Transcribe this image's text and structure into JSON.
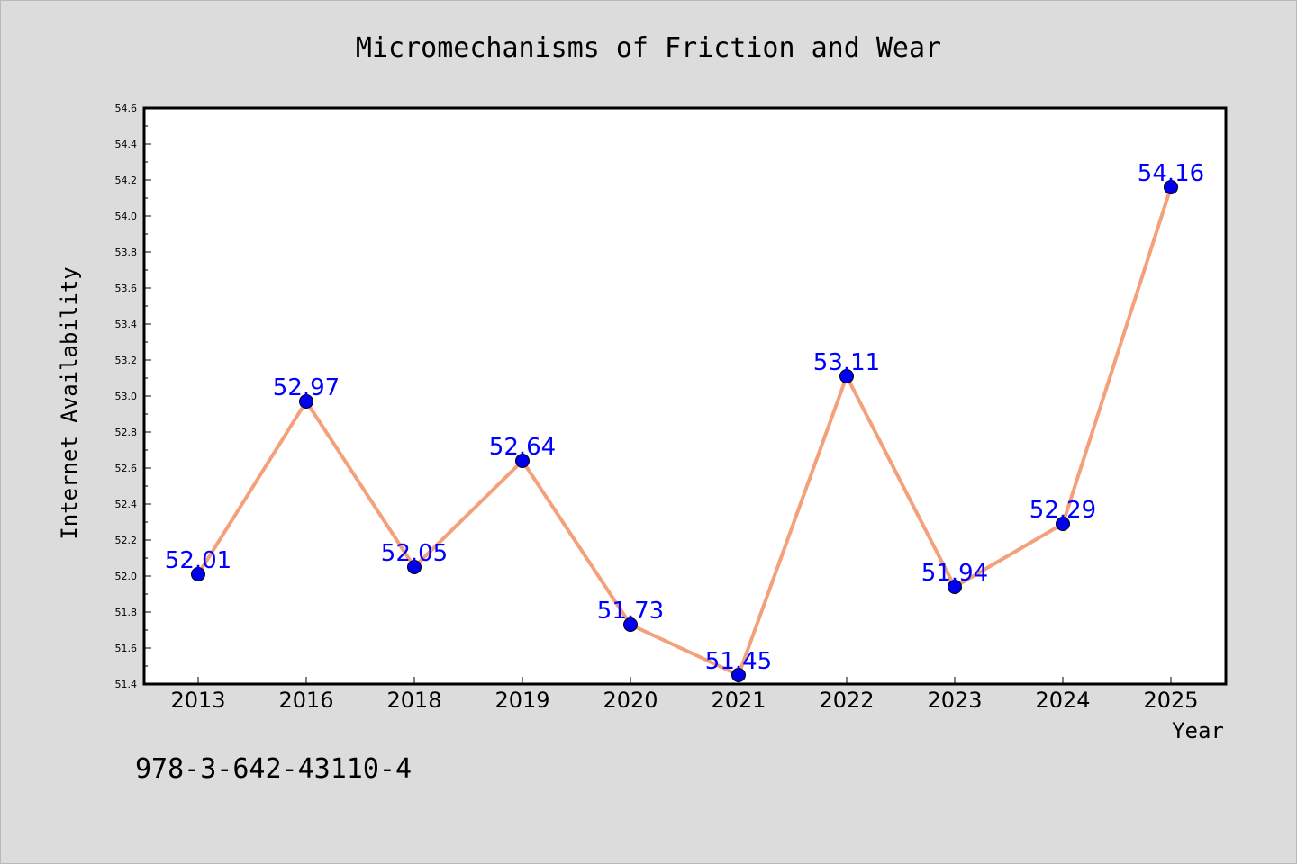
{
  "chart_data": {
    "type": "line",
    "title": "Micromechanisms of Friction and Wear",
    "xlabel": "Year",
    "ylabel": "Internet Availability",
    "categories": [
      "2013",
      "2016",
      "2018",
      "2019",
      "2020",
      "2021",
      "2022",
      "2023",
      "2024",
      "2025"
    ],
    "series": [
      {
        "values": [
          52.01,
          52.97,
          52.05,
          52.64,
          51.73,
          51.45,
          53.11,
          51.94,
          52.29,
          54.16
        ],
        "line_color": "#f4a07a",
        "marker_color": "#0000ee"
      }
    ],
    "data_labels": [
      "52.01",
      "52.97",
      "52.05",
      "52.64",
      "51.73",
      "51.45",
      "53.11",
      "51.94",
      "52.29",
      "54.16"
    ],
    "ylim": [
      51.4,
      54.6
    ],
    "y_ticks": [
      "51.4",
      "51.6",
      "51.8",
      "52.0",
      "52.2",
      "52.4",
      "52.6",
      "52.8",
      "53.0",
      "53.2",
      "53.4",
      "53.6",
      "53.8",
      "54.0",
      "54.2",
      "54.4",
      "54.6"
    ],
    "grid": false,
    "legend": "none",
    "label_color": "#0000ff"
  },
  "footer": {
    "isbn": "978-3-642-43110-4"
  }
}
